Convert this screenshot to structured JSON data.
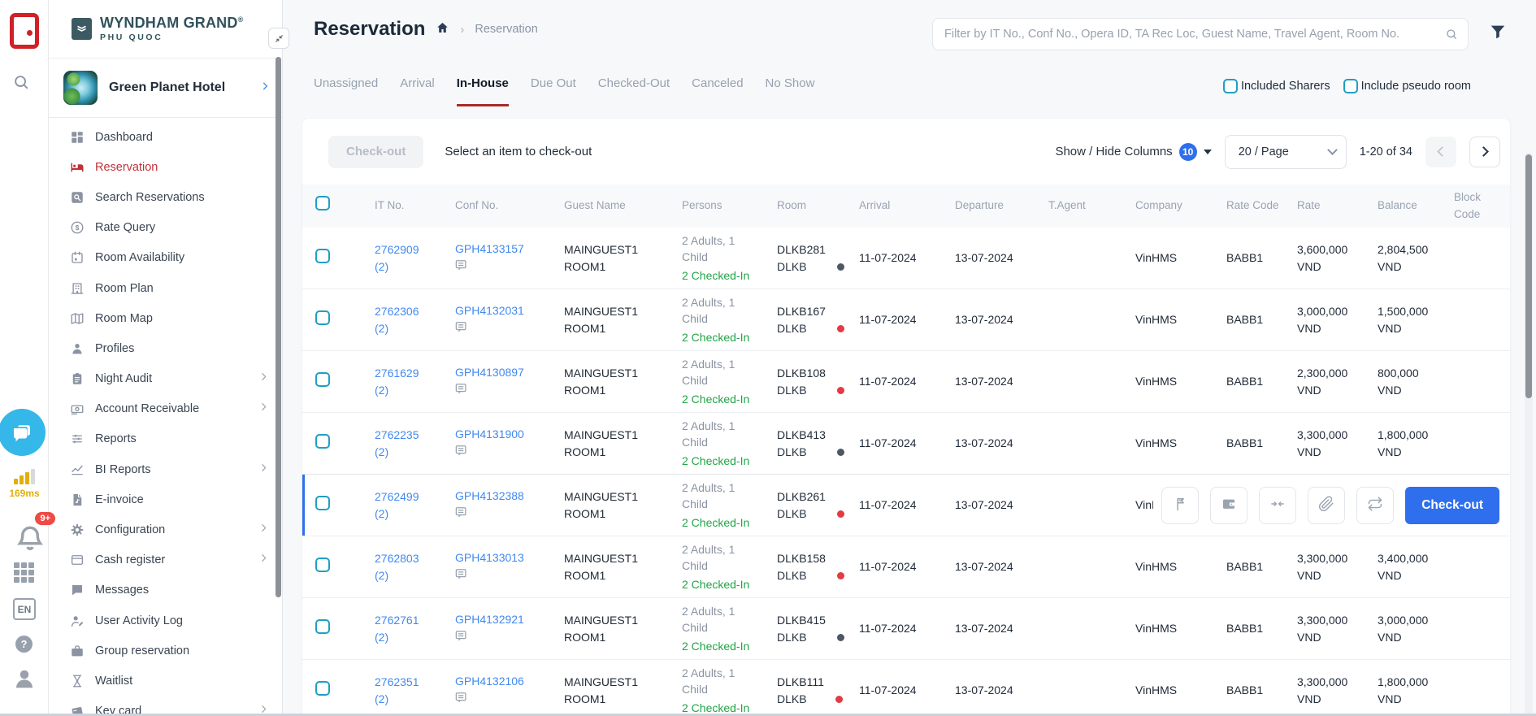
{
  "colors": {
    "accent_red": "#bf3138",
    "link_blue": "#4189f0",
    "button_blue": "#2f6fed",
    "green": "#21a447",
    "teal": "#1f9fc4",
    "gold": "#e2ae0a",
    "badge_red": "#ee4b45"
  },
  "rail": {
    "latency": "169ms",
    "notification_count": "9+",
    "language": "EN"
  },
  "sidebar": {
    "brand_name": "WYNDHAM GRAND",
    "brand_reg": "®",
    "brand_sub": "PHU QUOC",
    "hotel_name": "Green Planet Hotel",
    "items": [
      {
        "label": "Dashboard",
        "icon": "dashboard-icon",
        "active": false,
        "expandable": false
      },
      {
        "label": "Reservation",
        "icon": "reservation-icon",
        "active": true,
        "expandable": false
      },
      {
        "label": "Search Reservations",
        "icon": "search-reservations-icon",
        "active": false,
        "expandable": false
      },
      {
        "label": "Rate Query",
        "icon": "rate-query-icon",
        "active": false,
        "expandable": false
      },
      {
        "label": "Room Availability",
        "icon": "room-availability-icon",
        "active": false,
        "expandable": false
      },
      {
        "label": "Room Plan",
        "icon": "room-plan-icon",
        "active": false,
        "expandable": false
      },
      {
        "label": "Room Map",
        "icon": "room-map-icon",
        "active": false,
        "expandable": false
      },
      {
        "label": "Profiles",
        "icon": "profiles-icon",
        "active": false,
        "expandable": false
      },
      {
        "label": "Night Audit",
        "icon": "night-audit-icon",
        "active": false,
        "expandable": true
      },
      {
        "label": "Account Receivable",
        "icon": "account-receivable-icon",
        "active": false,
        "expandable": true
      },
      {
        "label": "Reports",
        "icon": "reports-icon",
        "active": false,
        "expandable": false
      },
      {
        "label": "BI Reports",
        "icon": "bi-reports-icon",
        "active": false,
        "expandable": true
      },
      {
        "label": "E-invoice",
        "icon": "e-invoice-icon",
        "active": false,
        "expandable": false
      },
      {
        "label": "Configuration",
        "icon": "configuration-icon",
        "active": false,
        "expandable": true
      },
      {
        "label": "Cash register",
        "icon": "cash-register-icon",
        "active": false,
        "expandable": true
      },
      {
        "label": "Messages",
        "icon": "messages-icon",
        "active": false,
        "expandable": false
      },
      {
        "label": "User Activity Log",
        "icon": "user-activity-log-icon",
        "active": false,
        "expandable": false
      },
      {
        "label": "Group reservation",
        "icon": "group-reservation-icon",
        "active": false,
        "expandable": false
      },
      {
        "label": "Waitlist",
        "icon": "waitlist-icon",
        "active": false,
        "expandable": false
      },
      {
        "label": "Key card",
        "icon": "key-card-icon",
        "active": false,
        "expandable": true
      }
    ]
  },
  "header": {
    "title": "Reservation",
    "breadcrumb_current": "Reservation",
    "filter_placeholder": "Filter by IT No., Conf No., Opera ID, TA Rec Loc, Guest Name, Travel Agent, Room No."
  },
  "tabs": [
    {
      "label": "Unassigned",
      "active": false
    },
    {
      "label": "Arrival",
      "active": false
    },
    {
      "label": "In-House",
      "active": true
    },
    {
      "label": "Due Out",
      "active": false
    },
    {
      "label": "Checked-Out",
      "active": false
    },
    {
      "label": "Canceled",
      "active": false
    },
    {
      "label": "No Show",
      "active": false
    }
  ],
  "filters": {
    "included_sharers": "Included Sharers",
    "include_pseudo_room": "Include pseudo room"
  },
  "toolbar": {
    "checkout_button": "Check-out",
    "hint": "Select an item to check-out",
    "columns_toggle": "Show / Hide Columns",
    "columns_count": "10",
    "page_size": "20 / Page",
    "range": "1-20 of 34"
  },
  "table": {
    "columns": [
      "",
      "IT No.",
      "Conf No.",
      "Guest Name",
      "Persons",
      "Room",
      "Arrival",
      "Departure",
      "T.Agent",
      "Company",
      "Rate Code",
      "Rate",
      "Balance",
      "Block Code"
    ],
    "rows": [
      {
        "it_no": "2762909",
        "it_count": "(2)",
        "conf_no": "GPH4133157",
        "guest_name": "MAINGUEST1 ROOM1",
        "persons": "2 Adults, 1 Child",
        "persons_status": "2 Checked-In",
        "room": "DLKB281",
        "room_type": "DLKB",
        "dot": "dark",
        "arrival": "11-07-2024",
        "departure": "13-07-2024",
        "t_agent": "",
        "company": "VinHMS",
        "rate_code": "BABB1",
        "rate": "3,600,000 VND",
        "balance": "2,804,500 VND",
        "block_code": "",
        "highlighted": false
      },
      {
        "it_no": "2762306",
        "it_count": "(2)",
        "conf_no": "GPH4132031",
        "guest_name": "MAINGUEST1 ROOM1",
        "persons": "2 Adults, 1 Child",
        "persons_status": "2 Checked-In",
        "room": "DLKB167",
        "room_type": "DLKB",
        "dot": "red",
        "arrival": "11-07-2024",
        "departure": "13-07-2024",
        "t_agent": "",
        "company": "VinHMS",
        "rate_code": "BABB1",
        "rate": "3,000,000 VND",
        "balance": "1,500,000 VND",
        "block_code": "",
        "highlighted": false
      },
      {
        "it_no": "2761629",
        "it_count": "(2)",
        "conf_no": "GPH4130897",
        "guest_name": "MAINGUEST1 ROOM1",
        "persons": "2 Adults, 1 Child",
        "persons_status": "2 Checked-In",
        "room": "DLKB108",
        "room_type": "DLKB",
        "dot": "red",
        "arrival": "11-07-2024",
        "departure": "13-07-2024",
        "t_agent": "",
        "company": "VinHMS",
        "rate_code": "BABB1",
        "rate": "2,300,000 VND",
        "balance": "800,000 VND",
        "block_code": "",
        "highlighted": false
      },
      {
        "it_no": "2762235",
        "it_count": "(2)",
        "conf_no": "GPH4131900",
        "guest_name": "MAINGUEST1 ROOM1",
        "persons": "2 Adults, 1 Child",
        "persons_status": "2 Checked-In",
        "room": "DLKB413",
        "room_type": "DLKB",
        "dot": "dark",
        "arrival": "11-07-2024",
        "departure": "13-07-2024",
        "t_agent": "",
        "company": "VinHMS",
        "rate_code": "BABB1",
        "rate": "3,300,000 VND",
        "balance": "1,800,000 VND",
        "block_code": "",
        "highlighted": false
      },
      {
        "it_no": "2762499",
        "it_count": "(2)",
        "conf_no": "GPH4132388",
        "guest_name": "MAINGUEST1 ROOM1",
        "persons": "2 Adults, 1 Child",
        "persons_status": "2 Checked-In",
        "room": "DLKB261",
        "room_type": "DLKB",
        "dot": "red",
        "arrival": "11-07-2024",
        "departure": "13-07-2024",
        "t_agent": "",
        "company": "VinHMS",
        "rate_code": "",
        "rate": "",
        "balance": "",
        "block_code": "",
        "highlighted": true
      },
      {
        "it_no": "2762803",
        "it_count": "(2)",
        "conf_no": "GPH4133013",
        "guest_name": "MAINGUEST1 ROOM1",
        "persons": "2 Adults, 1 Child",
        "persons_status": "2 Checked-In",
        "room": "DLKB158",
        "room_type": "DLKB",
        "dot": "red",
        "arrival": "11-07-2024",
        "departure": "13-07-2024",
        "t_agent": "",
        "company": "VinHMS",
        "rate_code": "BABB1",
        "rate": "3,300,000 VND",
        "balance": "3,400,000 VND",
        "block_code": "",
        "highlighted": false
      },
      {
        "it_no": "2762761",
        "it_count": "(2)",
        "conf_no": "GPH4132921",
        "guest_name": "MAINGUEST1 ROOM1",
        "persons": "2 Adults, 1 Child",
        "persons_status": "2 Checked-In",
        "room": "DLKB415",
        "room_type": "DLKB",
        "dot": "dark",
        "arrival": "11-07-2024",
        "departure": "13-07-2024",
        "t_agent": "",
        "company": "VinHMS",
        "rate_code": "BABB1",
        "rate": "3,300,000 VND",
        "balance": "3,000,000 VND",
        "block_code": "",
        "highlighted": false
      },
      {
        "it_no": "2762351",
        "it_count": "(2)",
        "conf_no": "GPH4132106",
        "guest_name": "MAINGUEST1 ROOM1",
        "persons": "2 Adults, 1 Child",
        "persons_status": "2 Checked-In",
        "room": "DLKB111",
        "room_type": "DLKB",
        "dot": "red",
        "arrival": "11-07-2024",
        "departure": "13-07-2024",
        "t_agent": "",
        "company": "VinHMS",
        "rate_code": "BABB1",
        "rate": "3,300,000 VND",
        "balance": "1,800,000 VND",
        "block_code": "",
        "highlighted": false
      }
    ]
  },
  "row_actions": {
    "buttons": [
      "checkin-door-icon",
      "folio-wallet-icon",
      "merge-arrows-icon",
      "attachment-icon",
      "exchange-icon"
    ],
    "checkout_button": "Check-out"
  }
}
